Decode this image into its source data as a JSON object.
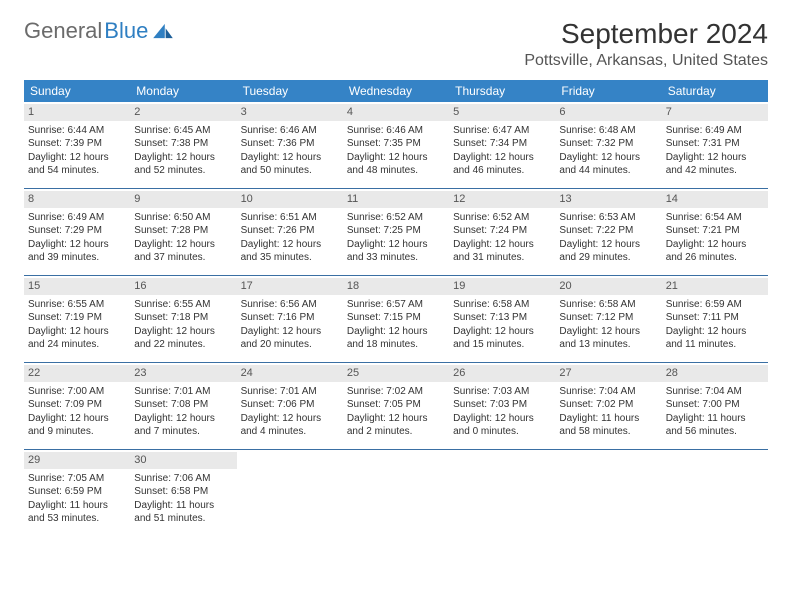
{
  "brand": {
    "part1": "General",
    "part2": "Blue"
  },
  "title": "September 2024",
  "location": "Pottsville, Arkansas, United States",
  "colors": {
    "header_bg": "#3583c6",
    "header_text": "#ffffff",
    "daynum_bg": "#e9e9e9",
    "border": "#3a6fa3",
    "text": "#333333",
    "brand_gray": "#6b6b6b",
    "brand_blue": "#2f7fc2"
  },
  "layout": {
    "columns": 7,
    "rows": 5,
    "first_weekday": 0
  },
  "day_names": [
    "Sunday",
    "Monday",
    "Tuesday",
    "Wednesday",
    "Thursday",
    "Friday",
    "Saturday"
  ],
  "days": [
    {
      "n": 1,
      "sunrise": "6:44 AM",
      "sunset": "7:39 PM",
      "daylight": "12 hours and 54 minutes."
    },
    {
      "n": 2,
      "sunrise": "6:45 AM",
      "sunset": "7:38 PM",
      "daylight": "12 hours and 52 minutes."
    },
    {
      "n": 3,
      "sunrise": "6:46 AM",
      "sunset": "7:36 PM",
      "daylight": "12 hours and 50 minutes."
    },
    {
      "n": 4,
      "sunrise": "6:46 AM",
      "sunset": "7:35 PM",
      "daylight": "12 hours and 48 minutes."
    },
    {
      "n": 5,
      "sunrise": "6:47 AM",
      "sunset": "7:34 PM",
      "daylight": "12 hours and 46 minutes."
    },
    {
      "n": 6,
      "sunrise": "6:48 AM",
      "sunset": "7:32 PM",
      "daylight": "12 hours and 44 minutes."
    },
    {
      "n": 7,
      "sunrise": "6:49 AM",
      "sunset": "7:31 PM",
      "daylight": "12 hours and 42 minutes."
    },
    {
      "n": 8,
      "sunrise": "6:49 AM",
      "sunset": "7:29 PM",
      "daylight": "12 hours and 39 minutes."
    },
    {
      "n": 9,
      "sunrise": "6:50 AM",
      "sunset": "7:28 PM",
      "daylight": "12 hours and 37 minutes."
    },
    {
      "n": 10,
      "sunrise": "6:51 AM",
      "sunset": "7:26 PM",
      "daylight": "12 hours and 35 minutes."
    },
    {
      "n": 11,
      "sunrise": "6:52 AM",
      "sunset": "7:25 PM",
      "daylight": "12 hours and 33 minutes."
    },
    {
      "n": 12,
      "sunrise": "6:52 AM",
      "sunset": "7:24 PM",
      "daylight": "12 hours and 31 minutes."
    },
    {
      "n": 13,
      "sunrise": "6:53 AM",
      "sunset": "7:22 PM",
      "daylight": "12 hours and 29 minutes."
    },
    {
      "n": 14,
      "sunrise": "6:54 AM",
      "sunset": "7:21 PM",
      "daylight": "12 hours and 26 minutes."
    },
    {
      "n": 15,
      "sunrise": "6:55 AM",
      "sunset": "7:19 PM",
      "daylight": "12 hours and 24 minutes."
    },
    {
      "n": 16,
      "sunrise": "6:55 AM",
      "sunset": "7:18 PM",
      "daylight": "12 hours and 22 minutes."
    },
    {
      "n": 17,
      "sunrise": "6:56 AM",
      "sunset": "7:16 PM",
      "daylight": "12 hours and 20 minutes."
    },
    {
      "n": 18,
      "sunrise": "6:57 AM",
      "sunset": "7:15 PM",
      "daylight": "12 hours and 18 minutes."
    },
    {
      "n": 19,
      "sunrise": "6:58 AM",
      "sunset": "7:13 PM",
      "daylight": "12 hours and 15 minutes."
    },
    {
      "n": 20,
      "sunrise": "6:58 AM",
      "sunset": "7:12 PM",
      "daylight": "12 hours and 13 minutes."
    },
    {
      "n": 21,
      "sunrise": "6:59 AM",
      "sunset": "7:11 PM",
      "daylight": "12 hours and 11 minutes."
    },
    {
      "n": 22,
      "sunrise": "7:00 AM",
      "sunset": "7:09 PM",
      "daylight": "12 hours and 9 minutes."
    },
    {
      "n": 23,
      "sunrise": "7:01 AM",
      "sunset": "7:08 PM",
      "daylight": "12 hours and 7 minutes."
    },
    {
      "n": 24,
      "sunrise": "7:01 AM",
      "sunset": "7:06 PM",
      "daylight": "12 hours and 4 minutes."
    },
    {
      "n": 25,
      "sunrise": "7:02 AM",
      "sunset": "7:05 PM",
      "daylight": "12 hours and 2 minutes."
    },
    {
      "n": 26,
      "sunrise": "7:03 AM",
      "sunset": "7:03 PM",
      "daylight": "12 hours and 0 minutes."
    },
    {
      "n": 27,
      "sunrise": "7:04 AM",
      "sunset": "7:02 PM",
      "daylight": "11 hours and 58 minutes."
    },
    {
      "n": 28,
      "sunrise": "7:04 AM",
      "sunset": "7:00 PM",
      "daylight": "11 hours and 56 minutes."
    },
    {
      "n": 29,
      "sunrise": "7:05 AM",
      "sunset": "6:59 PM",
      "daylight": "11 hours and 53 minutes."
    },
    {
      "n": 30,
      "sunrise": "7:06 AM",
      "sunset": "6:58 PM",
      "daylight": "11 hours and 51 minutes."
    }
  ],
  "labels": {
    "sunrise": "Sunrise: ",
    "sunset": "Sunset: ",
    "daylight": "Daylight: "
  }
}
